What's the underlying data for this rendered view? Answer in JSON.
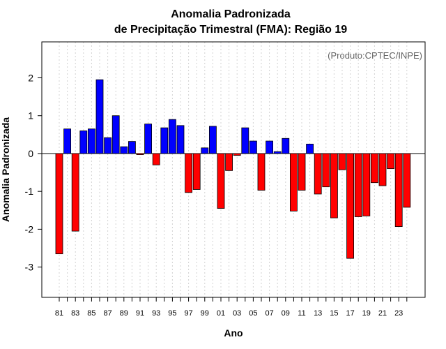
{
  "chart_data": {
    "type": "bar",
    "title": "Anomalia Padronizada",
    "subtitle": "de Precipitação Trimestral (FMA): Região 19",
    "annotation": "(Produto:CPTEC/INPE)",
    "xlabel": "Ano",
    "ylabel": "Anomalia Padronizada",
    "ylim": [
      -3.8,
      2.95
    ],
    "yticks": [
      -3,
      -2,
      -1,
      0,
      1,
      2
    ],
    "grid": true,
    "positive_color": "#0000ff",
    "negative_color": "#ff0000",
    "categories": [
      "81",
      "82",
      "83",
      "84",
      "85",
      "86",
      "87",
      "88",
      "89",
      "90",
      "91",
      "92",
      "93",
      "94",
      "95",
      "96",
      "97",
      "98",
      "99",
      "00",
      "01",
      "02",
      "03",
      "04",
      "05",
      "06",
      "07",
      "08",
      "09",
      "10",
      "11",
      "12",
      "13",
      "14",
      "15",
      "16",
      "17",
      "18",
      "19",
      "20",
      "21",
      "22",
      "23",
      "24"
    ],
    "xtick_labels": [
      "81",
      "83",
      "85",
      "87",
      "89",
      "91",
      "93",
      "95",
      "97",
      "99",
      "01",
      "03",
      "05",
      "07",
      "09",
      "11",
      "13",
      "15",
      "17",
      "19",
      "21",
      "23"
    ],
    "values": [
      -2.65,
      0.65,
      -2.05,
      0.6,
      0.65,
      1.95,
      0.42,
      1.0,
      0.18,
      0.32,
      -0.03,
      0.78,
      -0.3,
      0.68,
      0.9,
      0.74,
      -1.03,
      -0.95,
      0.15,
      0.72,
      -1.45,
      -0.45,
      -0.05,
      0.68,
      0.33,
      -0.97,
      0.33,
      0.05,
      0.4,
      -1.52,
      -0.97,
      0.25,
      -1.07,
      -0.88,
      -1.7,
      -0.43,
      -2.77,
      -1.67,
      -1.65,
      -0.77,
      -0.85,
      -0.4,
      -1.93,
      -1.42
    ]
  }
}
